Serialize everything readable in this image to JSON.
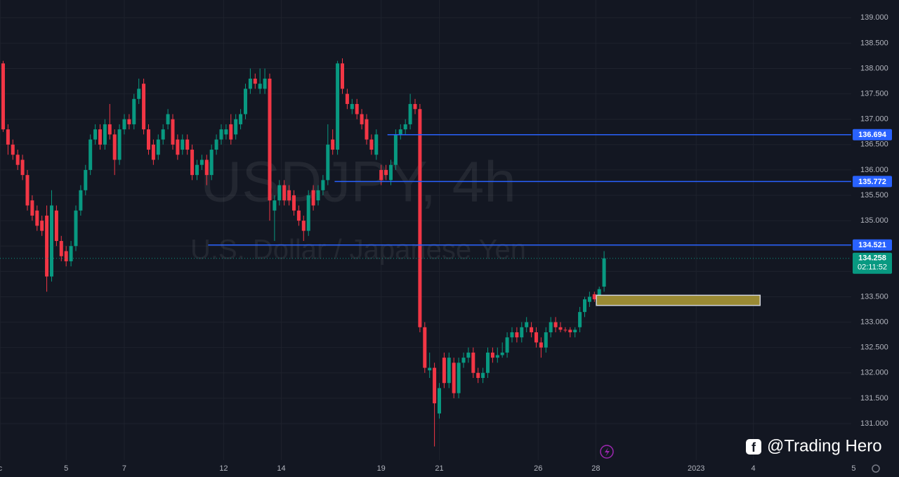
{
  "chart_data": {
    "type": "candlestick",
    "title": "USDJPY, 4h",
    "subtitle": "U.S. Dollar / Japanese Yen",
    "watermark": "@Trading Hero",
    "xlim": [
      -0.65,
      175.0
    ],
    "xticks": [
      {
        "value": -0.6,
        "label": "c"
      },
      {
        "value": 13,
        "label": "5"
      },
      {
        "value": 25,
        "label": "7"
      },
      {
        "value": 45.5,
        "label": "12"
      },
      {
        "value": 57.4,
        "label": "14"
      },
      {
        "value": 78,
        "label": "19"
      },
      {
        "value": 90,
        "label": "21"
      },
      {
        "value": 110.4,
        "label": "26"
      },
      {
        "value": 122.3,
        "label": "28"
      },
      {
        "value": 143,
        "label": "2023"
      },
      {
        "value": 154.8,
        "label": "4"
      },
      {
        "value": 175.5,
        "label": "5"
      }
    ],
    "ylim": [
      130.28,
      139.35
    ],
    "yticks": [
      {
        "value": 131,
        "label": "131.000"
      },
      {
        "value": 131.5,
        "label": "131.500"
      },
      {
        "value": 132,
        "label": "132.000"
      },
      {
        "value": 132.5,
        "label": "132.500"
      },
      {
        "value": 133,
        "label": "133.000"
      },
      {
        "value": 133.5,
        "label": "133.500"
      },
      {
        "value": 134,
        "label": "134.000"
      },
      {
        "value": 134.5,
        "label": "134.500"
      },
      {
        "value": 135,
        "label": "135.000"
      },
      {
        "value": 135.5,
        "label": "135.500"
      },
      {
        "value": 136,
        "label": "136.000"
      },
      {
        "value": 136.5,
        "label": "136.500"
      },
      {
        "value": 137,
        "label": "137.000"
      },
      {
        "value": 137.5,
        "label": "137.500"
      },
      {
        "value": 138,
        "label": "138.000"
      },
      {
        "value": 138.5,
        "label": "138.500"
      },
      {
        "value": 139,
        "label": "139.000"
      }
    ],
    "grid": true,
    "series": [
      {
        "up_color": "#089981",
        "down_color": "#f23645",
        "open": [
          138.1,
          136.8,
          136.5,
          136.3,
          136.2,
          135.9,
          135.4,
          135.2,
          135.0,
          135.1,
          133.9,
          135.2,
          134.6,
          134.4,
          134.2,
          134.5,
          135.2,
          135.6,
          136.0,
          136.6,
          136.8,
          136.5,
          136.9,
          136.7,
          136.2,
          136.8,
          137.0,
          136.9,
          137.4,
          137.7,
          136.8,
          136.5,
          136.3,
          136.6,
          136.9,
          137.0,
          136.6,
          136.4,
          136.6,
          136.4,
          135.9,
          136.1,
          136.2,
          135.9,
          136.4,
          136.6,
          136.7,
          136.9,
          136.7,
          136.9,
          137.1,
          137.6,
          137.8,
          137.6,
          137.6,
          137.8,
          135.2,
          135.4,
          135.7,
          135.6,
          135.5,
          135.2,
          135.0,
          134.8,
          135.6,
          135.4,
          135.6,
          135.8,
          136.6,
          136.4,
          138.1,
          137.5,
          137.2,
          137.3,
          137.1,
          137.0,
          136.6,
          136.3,
          136.0,
          136.0,
          135.8,
          136.1,
          136.7,
          136.8,
          136.9,
          137.3,
          137.2,
          132.9,
          132.05,
          132.1,
          131.2,
          132.3,
          131.8,
          132.2,
          131.6,
          132.2,
          132.3,
          132.4,
          132.0,
          131.9,
          132.0,
          132.4,
          132.3,
          132.35,
          132.4,
          132.7,
          132.8,
          132.7,
          132.9,
          132.9,
          132.8,
          132.6,
          132.5,
          132.8,
          133.0,
          132.9,
          132.85,
          132.85,
          132.8,
          132.9,
          133.2,
          133.4,
          133.55,
          133.4,
          133.7
        ],
        "high": [
          138.15,
          136.9,
          136.6,
          136.4,
          136.3,
          136.0,
          135.5,
          135.3,
          135.1,
          135.3,
          135.6,
          135.3,
          134.7,
          134.5,
          134.6,
          135.3,
          135.7,
          136.1,
          136.7,
          136.9,
          136.9,
          137.0,
          137.3,
          136.8,
          136.9,
          137.1,
          137.1,
          137.5,
          137.8,
          137.8,
          136.9,
          136.6,
          136.7,
          136.9,
          137.2,
          137.1,
          136.7,
          136.7,
          136.7,
          136.5,
          136.2,
          136.3,
          136.3,
          136.5,
          136.7,
          136.9,
          136.9,
          137.1,
          137.1,
          137.2,
          137.7,
          138.0,
          137.9,
          138.0,
          138.0,
          137.9,
          135.5,
          135.8,
          135.8,
          135.7,
          135.6,
          135.3,
          135.1,
          135.6,
          135.7,
          135.7,
          135.9,
          136.9,
          136.8,
          138.15,
          138.2,
          137.6,
          137.4,
          137.4,
          137.2,
          137.1,
          136.7,
          136.8,
          136.1,
          136.1,
          136.2,
          136.8,
          136.9,
          137.0,
          137.5,
          137.4,
          137.3,
          133.0,
          132.4,
          132.2,
          131.8,
          132.4,
          132.4,
          132.3,
          132.3,
          132.4,
          132.5,
          132.5,
          132.1,
          132.1,
          132.5,
          132.5,
          132.5,
          132.6,
          132.8,
          132.9,
          132.9,
          133.0,
          133.1,
          133.0,
          132.9,
          132.7,
          132.9,
          133.1,
          133.1,
          133.0,
          132.9,
          132.9,
          132.9,
          133.3,
          133.5,
          133.6,
          133.6,
          133.7,
          134.4
        ],
        "low": [
          136.75,
          136.3,
          136.2,
          136.0,
          135.8,
          135.2,
          135.0,
          134.8,
          134.7,
          133.6,
          133.8,
          134.5,
          134.2,
          134.1,
          134.1,
          134.4,
          135.1,
          135.5,
          135.9,
          136.5,
          136.4,
          136.4,
          136.6,
          135.9,
          136.1,
          136.7,
          136.8,
          136.8,
          137.3,
          136.7,
          136.3,
          136.1,
          136.2,
          136.5,
          136.8,
          136.4,
          136.2,
          136.3,
          136.3,
          135.8,
          135.8,
          136.0,
          135.7,
          135.8,
          136.3,
          136.5,
          136.6,
          136.5,
          136.6,
          136.8,
          137.0,
          137.5,
          137.6,
          137.5,
          137.5,
          135.0,
          134.6,
          135.3,
          135.3,
          135.3,
          135.1,
          134.9,
          134.6,
          134.7,
          135.2,
          135.3,
          135.5,
          135.7,
          136.3,
          136.3,
          137.5,
          137.2,
          137.1,
          137.0,
          136.8,
          136.5,
          136.3,
          136.2,
          135.7,
          135.8,
          135.7,
          136.0,
          136.6,
          136.7,
          136.8,
          137.1,
          132.8,
          132.0,
          131.9,
          130.55,
          131.1,
          131.7,
          131.7,
          131.5,
          131.5,
          132.1,
          132.2,
          131.9,
          131.8,
          131.8,
          131.9,
          132.2,
          132.2,
          132.3,
          132.3,
          132.6,
          132.6,
          132.6,
          132.8,
          132.7,
          132.5,
          132.3,
          132.4,
          132.7,
          132.8,
          132.8,
          132.8,
          132.7,
          132.7,
          132.8,
          133.1,
          133.3,
          133.4,
          133.35,
          133.6
        ],
        "close": [
          136.8,
          136.5,
          136.3,
          136.1,
          135.9,
          135.3,
          135.1,
          134.9,
          134.8,
          133.9,
          135.3,
          134.6,
          134.3,
          134.2,
          134.5,
          135.2,
          135.6,
          136.0,
          136.6,
          136.8,
          136.5,
          136.9,
          136.7,
          136.2,
          136.8,
          137.0,
          136.9,
          137.4,
          137.6,
          136.8,
          136.4,
          136.2,
          136.6,
          136.8,
          137.1,
          136.5,
          136.3,
          136.6,
          136.4,
          135.9,
          136.1,
          136.2,
          135.9,
          136.4,
          136.6,
          136.8,
          136.8,
          136.6,
          137.0,
          137.1,
          137.6,
          137.8,
          137.7,
          137.7,
          137.8,
          135.4,
          135.4,
          135.7,
          135.4,
          135.4,
          135.2,
          135.0,
          134.8,
          135.5,
          135.3,
          135.6,
          135.8,
          136.5,
          136.4,
          138.1,
          137.6,
          137.3,
          137.3,
          137.1,
          136.9,
          136.6,
          136.4,
          136.7,
          135.8,
          135.9,
          136.1,
          136.7,
          136.8,
          136.9,
          137.3,
          137.2,
          132.9,
          132.1,
          132.1,
          131.4,
          131.7,
          131.8,
          132.3,
          131.6,
          132.2,
          132.3,
          132.4,
          132.0,
          131.9,
          132.0,
          132.4,
          132.3,
          132.35,
          132.4,
          132.7,
          132.8,
          132.7,
          132.9,
          133.0,
          132.8,
          132.6,
          132.5,
          132.8,
          133.0,
          132.9,
          132.85,
          132.84,
          132.8,
          132.85,
          133.2,
          133.45,
          133.5,
          133.45,
          133.65,
          134.258
        ]
      }
    ],
    "hlines": [
      {
        "value": 136.694,
        "start": 79.3,
        "color": "#2962ff"
      },
      {
        "value": 135.772,
        "start": 68.4,
        "color": "#2962ff"
      },
      {
        "value": 134.521,
        "start": 42.3,
        "color": "#2962ff"
      }
    ],
    "last_price": {
      "value": 134.258,
      "countdown": "02:11:52",
      "color": "#089981"
    },
    "zone": {
      "x": [
        122.4,
        156.2
      ],
      "y": [
        133.33,
        133.53
      ],
      "color": "#9a8a34"
    }
  }
}
